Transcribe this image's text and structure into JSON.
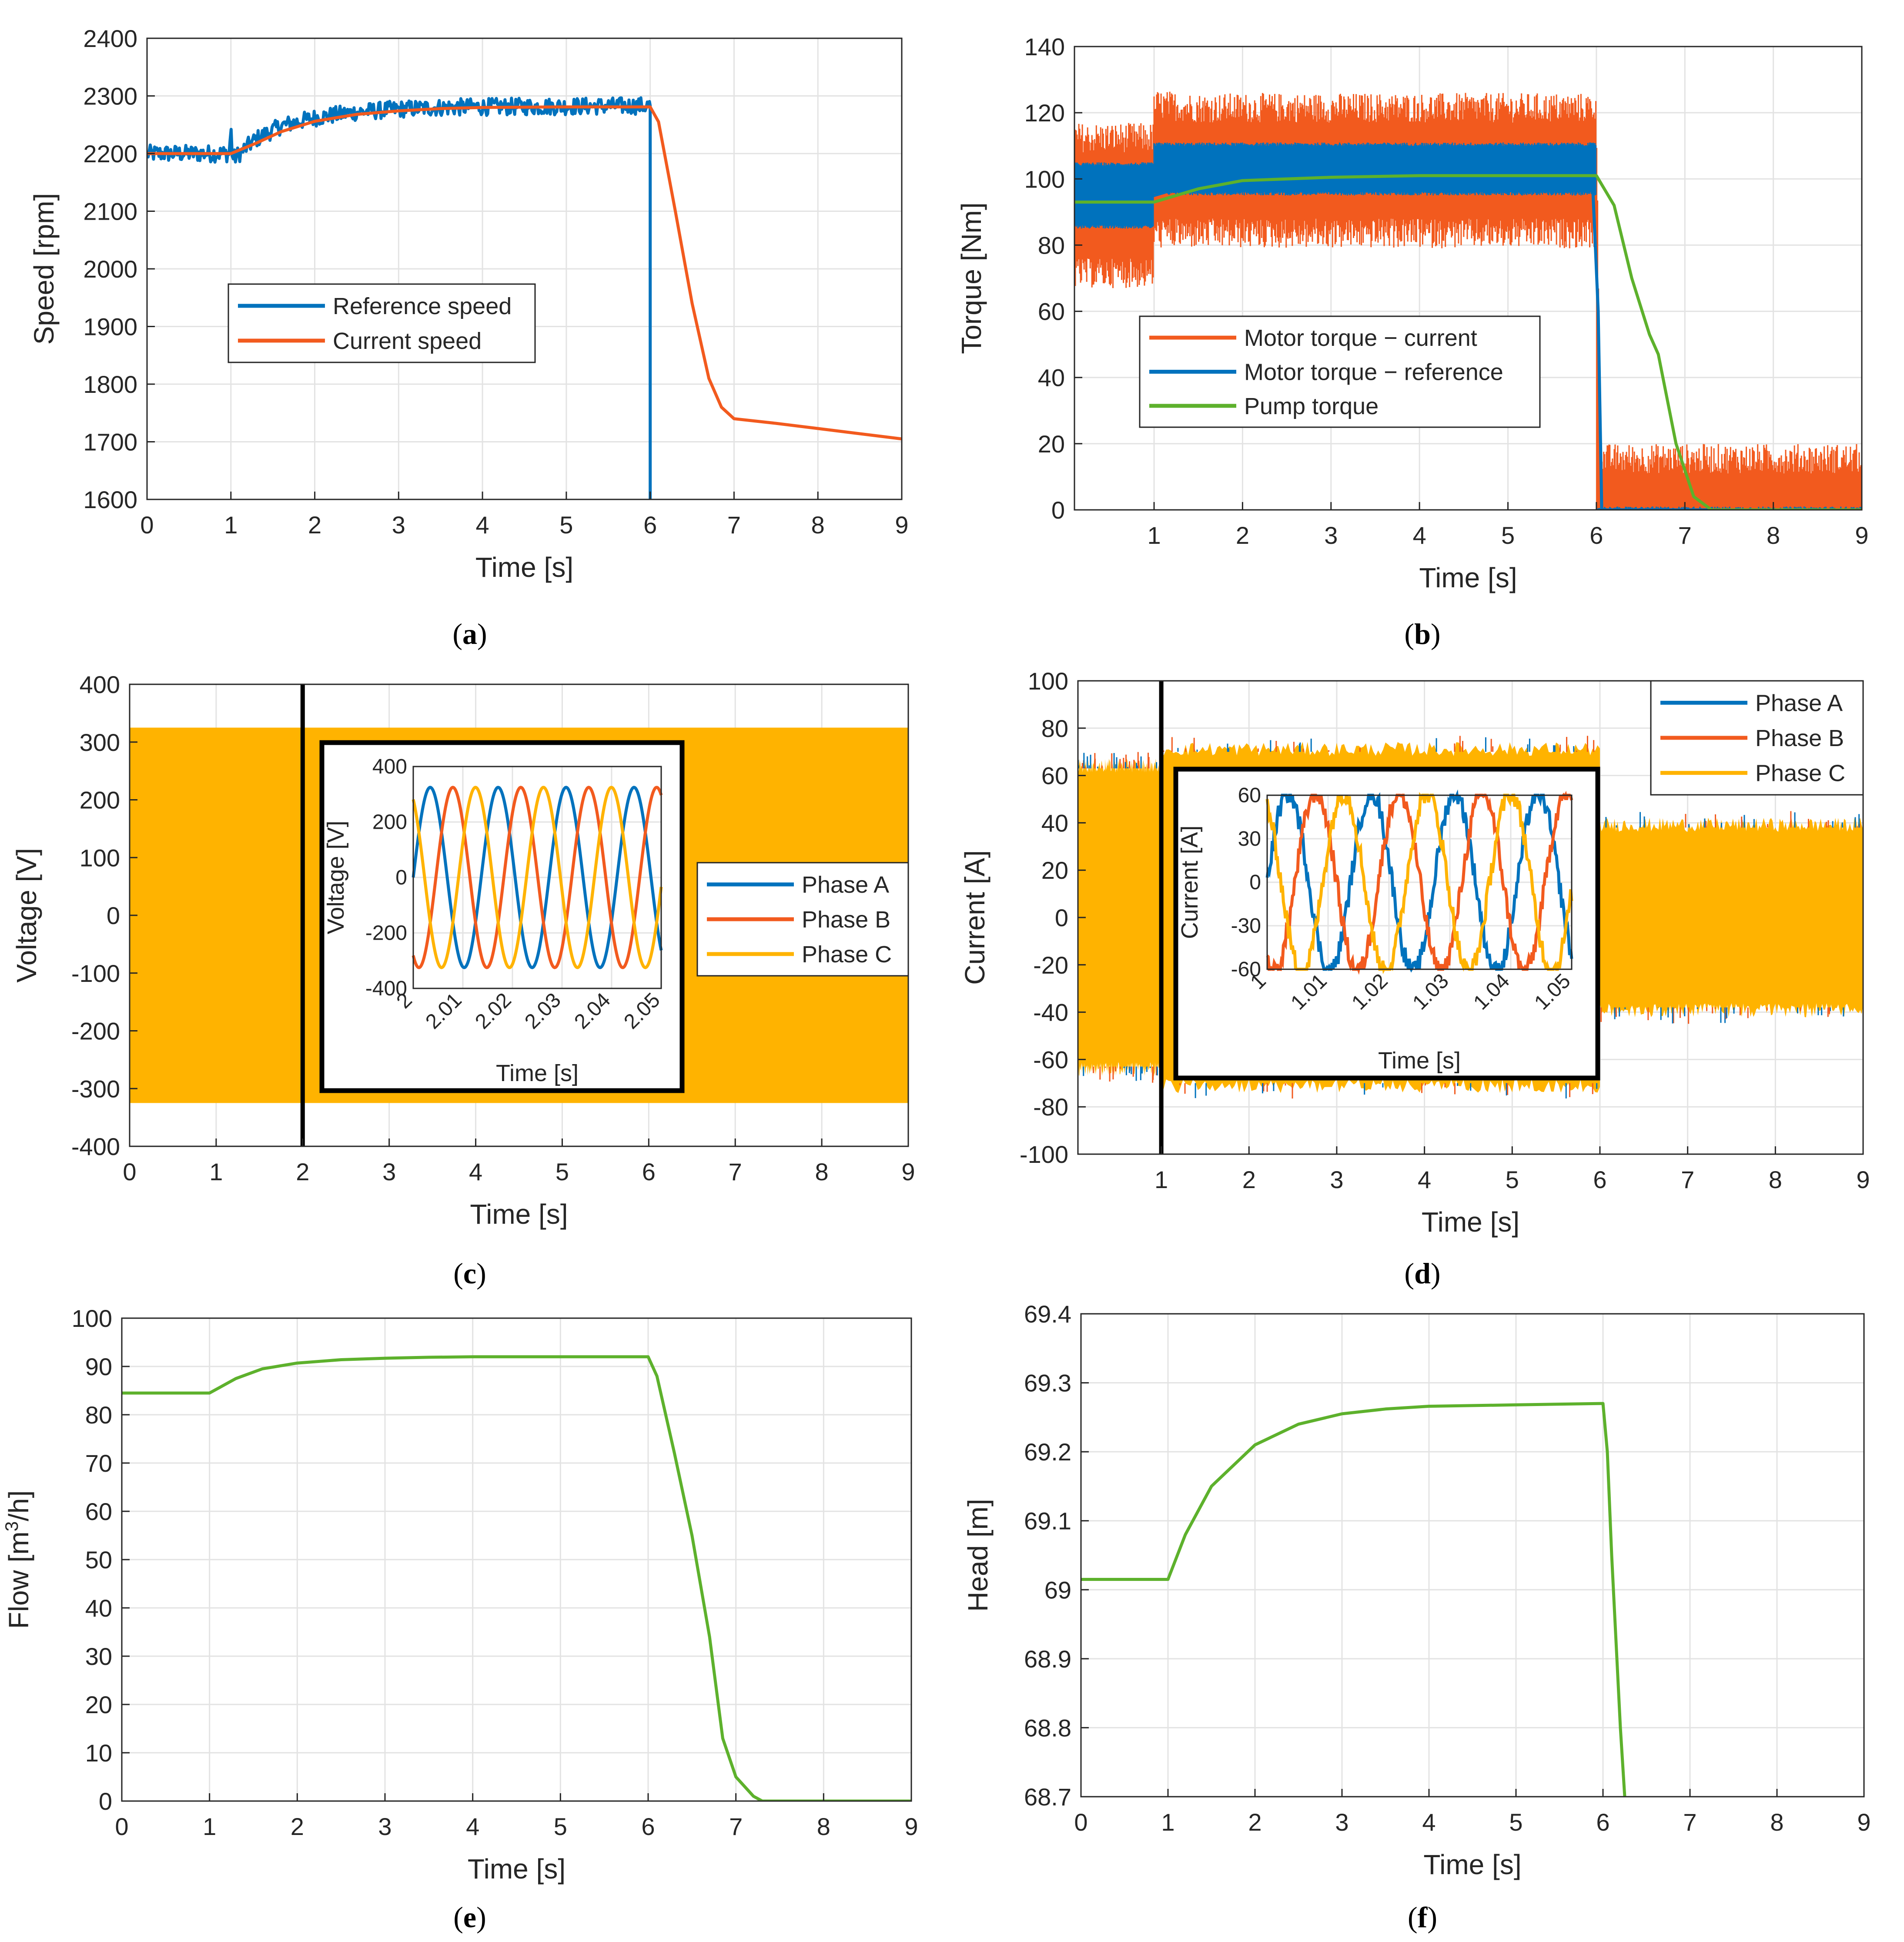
{
  "colors": {
    "blue": "#0072BD",
    "orange": "#F25A1E",
    "yellow": "#FFB300",
    "green": "#5DB12C",
    "grid": "#E3E3E3",
    "axis": "#262626"
  },
  "chart_data": [
    {
      "id": "a",
      "type": "line",
      "caption": {
        "open": "(",
        "letter": "a",
        "close": ")"
      },
      "xlabel": "Time [s]",
      "ylabel": "Speed [rpm]",
      "xlim": [
        0,
        9
      ],
      "ylim": [
        1600,
        2400
      ],
      "xticks": [
        0,
        1,
        2,
        3,
        4,
        5,
        6,
        7,
        8,
        9
      ],
      "yticks": [
        1600,
        1700,
        1800,
        1900,
        2000,
        2100,
        2200,
        2300,
        2400
      ],
      "legend": {
        "placement": "center-left",
        "entries": [
          "Reference speed",
          "Current speed"
        ]
      },
      "series": [
        {
          "name": "Reference speed",
          "color": "blue",
          "noise": 15,
          "x": [
            0,
            0.98,
            1.0,
            1.02,
            1.3,
            1.6,
            2.0,
            2.5,
            3.0,
            3.5,
            4.0,
            5.0,
            5.99,
            6.0,
            6.0
          ],
          "y": [
            2200,
            2200,
            2245,
            2190,
            2225,
            2248,
            2262,
            2272,
            2277,
            2280,
            2281,
            2282,
            2283,
            2283,
            1600
          ]
        },
        {
          "name": "Current speed",
          "color": "orange",
          "noise": 0,
          "x": [
            0,
            1.0,
            1.3,
            1.6,
            2.0,
            2.5,
            3.0,
            3.5,
            4.0,
            5.0,
            6.0,
            6.1,
            6.3,
            6.5,
            6.7,
            6.85,
            7.0,
            7.5,
            8.0,
            8.5,
            9.0
          ],
          "y": [
            2200,
            2200,
            2218,
            2238,
            2256,
            2268,
            2274,
            2278,
            2280,
            2281,
            2281,
            2255,
            2100,
            1940,
            1810,
            1760,
            1740,
            1732,
            1723,
            1714,
            1705
          ]
        }
      ]
    },
    {
      "id": "b",
      "type": "line",
      "caption": {
        "open": "(",
        "letter": "b",
        "close": ")"
      },
      "xlabel": "Time [s]",
      "ylabel": "Torque [Nm]",
      "xlim": [
        0.1,
        9
      ],
      "ylim": [
        0,
        140
      ],
      "xticks": [
        1,
        2,
        3,
        4,
        5,
        6,
        7,
        8,
        9
      ],
      "yticks": [
        0,
        20,
        40,
        60,
        80,
        100,
        120,
        140
      ],
      "legend": {
        "placement": "center-left",
        "entries": [
          "Motor torque − current",
          "Motor torque − reference",
          "Pump torque"
        ]
      },
      "series": [
        {
          "name": "Motor torque − current",
          "color": "orange",
          "band": {
            "x": [
              0.1,
              0.99,
              1.0,
              1.5,
              6.0,
              6.0,
              6.05,
              6.05,
              9.0
            ],
            "low": [
              76,
              76,
              88,
              88,
              88,
              0,
              0,
              0,
              0
            ],
            "high": [
              108,
              108,
              118,
              117,
              117,
              117,
              0,
              11,
              11
            ]
          },
          "spread": 9
        },
        {
          "name": "Motor torque − reference",
          "color": "blue",
          "band": {
            "x": [
              0.1,
              0.99,
              1.0,
              6.0,
              6.0,
              9.0
            ],
            "low": [
              86,
              86,
              96,
              96,
              0,
              0
            ],
            "high": [
              104,
              104,
              110,
              110,
              0,
              0
            ]
          },
          "spread": 1
        },
        {
          "name": "Motor torque − reference",
          "color": "blue",
          "band": null,
          "x": [
            0.1,
            1.0,
            2.0,
            4.0,
            5.95,
            6.02,
            6.06,
            9.0
          ],
          "y": [
            95,
            95,
            103,
            103,
            103,
            60,
            0,
            0
          ]
        },
        {
          "name": "Pump torque",
          "color": "green",
          "band": null,
          "x": [
            0.1,
            1.0,
            1.5,
            2.0,
            3.0,
            4.0,
            5.0,
            6.0,
            6.2,
            6.4,
            6.6,
            6.7,
            6.9,
            7.1,
            7.3,
            9.0
          ],
          "y": [
            93,
            93,
            97,
            99.5,
            100.5,
            101,
            101,
            101,
            92,
            70,
            53,
            47,
            20,
            4,
            0,
            0
          ]
        }
      ]
    },
    {
      "id": "c",
      "type": "line",
      "caption": {
        "open": "(",
        "letter": "c",
        "close": ")"
      },
      "xlabel": "Time [s]",
      "ylabel": "Voltage [V]",
      "xlim": [
        0,
        9
      ],
      "ylim": [
        -400,
        400
      ],
      "xticks": [
        0,
        1,
        2,
        3,
        4,
        5,
        6,
        7,
        8,
        9
      ],
      "yticks": [
        -400,
        -300,
        -200,
        -100,
        0,
        100,
        200,
        300,
        400
      ],
      "fill": {
        "color": "yellow",
        "low": -325,
        "high": 325
      },
      "marker_x": 2,
      "legend": {
        "placement": "center-right",
        "entries": [
          "Phase A",
          "Phase B",
          "Phase C"
        ]
      },
      "inset": {
        "xlabel": "Time [s]",
        "ylabel": "Voltage [V]",
        "xlim": [
          2,
          2.05
        ],
        "ylim": [
          -400,
          400
        ],
        "xticks": [
          "2",
          "2.01",
          "2.02",
          "2.03",
          "2.04",
          "2.05"
        ],
        "yticks": [
          -400,
          -200,
          0,
          200,
          400
        ],
        "amplitude": 325,
        "frequency_hz": 73,
        "noise": 0
      }
    },
    {
      "id": "d",
      "type": "line",
      "caption": {
        "open": "(",
        "letter": "d",
        "close": ")"
      },
      "xlabel": "Time [s]",
      "ylabel": "Current [A]",
      "xlim": [
        0.05,
        9
      ],
      "ylim": [
        -100,
        100
      ],
      "xticks": [
        1,
        2,
        3,
        4,
        5,
        6,
        7,
        8,
        9
      ],
      "yticks": [
        -100,
        -80,
        -60,
        -40,
        -20,
        0,
        20,
        40,
        60,
        80,
        100
      ],
      "fill": {
        "color": "yellow",
        "segments": [
          {
            "x0": 0.05,
            "x1": 1.0,
            "low": -63,
            "high": 63
          },
          {
            "x0": 1.0,
            "x1": 6.0,
            "low": -70,
            "high": 70
          },
          {
            "x0": 6.0,
            "x1": 9.0,
            "low": -38,
            "high": 38
          }
        ]
      },
      "marker_x": 1,
      "legend": {
        "placement": "top-right",
        "entries": [
          "Phase A",
          "Phase B",
          "Phase C"
        ]
      },
      "inset": {
        "xlabel": "Time [s]",
        "ylabel": "Current [A]",
        "xlim": [
          1,
          1.05
        ],
        "ylim": [
          -60,
          60
        ],
        "xticks": [
          "1",
          "1.01",
          "1.02",
          "1.03",
          "1.04",
          "1.05"
        ],
        "yticks": [
          -60,
          -30,
          0,
          30,
          60
        ],
        "amplitude": 62,
        "frequency_hz": 73,
        "noise": 7
      }
    },
    {
      "id": "e",
      "type": "line",
      "caption": {
        "open": "(",
        "letter": "e",
        "close": ")"
      },
      "xlabel": "Time [s]",
      "ylabel": "Flow [m³/h]",
      "ylabel_parts": [
        "Flow [m",
        "3",
        "/h]"
      ],
      "xlim": [
        0,
        9
      ],
      "ylim": [
        0,
        100
      ],
      "xticks": [
        0,
        1,
        2,
        3,
        4,
        5,
        6,
        7,
        8,
        9
      ],
      "yticks": [
        0,
        10,
        20,
        30,
        40,
        50,
        60,
        70,
        80,
        90,
        100
      ],
      "series": [
        {
          "name": "Flow",
          "color": "green",
          "noise": 0,
          "x": [
            0,
            1.0,
            1.3,
            1.6,
            2.0,
            2.5,
            3.0,
            3.5,
            4.0,
            5.0,
            6.0,
            6.1,
            6.3,
            6.5,
            6.7,
            6.85,
            7.0,
            7.2,
            7.3,
            9.0
          ],
          "y": [
            84.5,
            84.5,
            87.5,
            89.5,
            90.7,
            91.4,
            91.7,
            91.9,
            92,
            92,
            92,
            88,
            72,
            55,
            34,
            13,
            5,
            1,
            0,
            0
          ]
        }
      ]
    },
    {
      "id": "f",
      "type": "line",
      "caption": {
        "open": "(",
        "letter": "f",
        "close": ")"
      },
      "xlabel": "Time [s]",
      "ylabel": "Head [m]",
      "xlim": [
        0,
        9
      ],
      "ylim": [
        68.7,
        69.4
      ],
      "xticks": [
        0,
        1,
        2,
        3,
        4,
        5,
        6,
        7,
        8,
        9
      ],
      "yticks": [
        68.7,
        68.8,
        68.9,
        69,
        69.1,
        69.2,
        69.3,
        69.4
      ],
      "series": [
        {
          "name": "Head",
          "color": "green",
          "noise": 0,
          "x": [
            0,
            1.0,
            1.2,
            1.5,
            2.0,
            2.5,
            3.0,
            3.5,
            4.0,
            5.0,
            6.0,
            6.05,
            6.1,
            6.2,
            6.25
          ],
          "y": [
            69.015,
            69.015,
            69.08,
            69.15,
            69.21,
            69.24,
            69.255,
            69.262,
            69.266,
            69.268,
            69.27,
            69.2,
            69.05,
            68.8,
            68.7
          ]
        }
      ]
    }
  ]
}
